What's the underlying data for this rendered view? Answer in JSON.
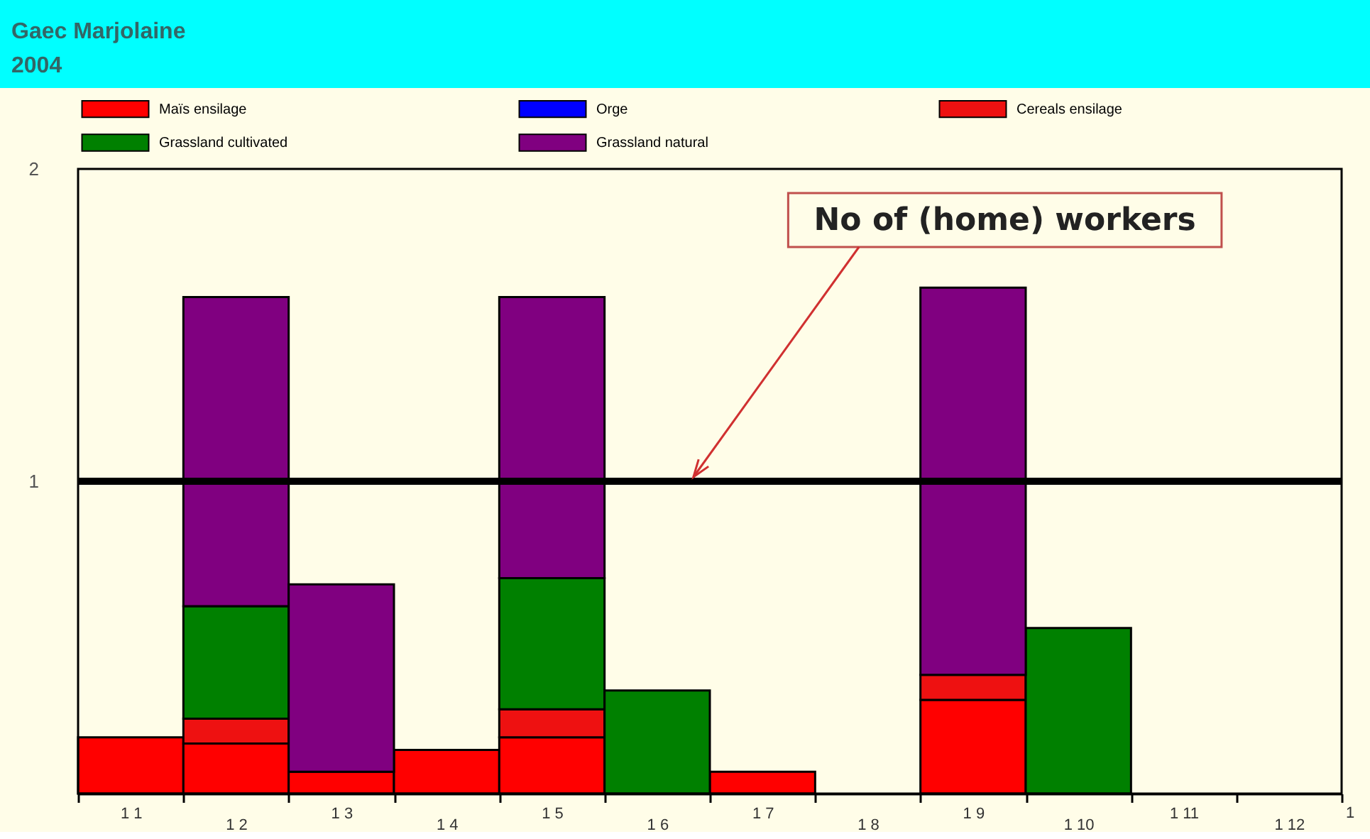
{
  "chart_data": {
    "type": "bar",
    "title": "Gaec Marjolaine",
    "subtitle": "2004",
    "categories": [
      "1 1",
      "1 2",
      "1 3",
      "1 4",
      "1 5",
      "1 6",
      "1 7",
      "1 8",
      "1 9",
      "1 10",
      "1 11",
      "1 12"
    ],
    "stacked": true,
    "series": [
      {
        "name": "Maïs ensilage",
        "color": "#ff0000",
        "values": [
          0.18,
          0.16,
          0.07,
          0.14,
          0.18,
          null,
          0.07,
          null,
          0.3,
          null,
          null,
          null
        ]
      },
      {
        "name": "Orge",
        "color": "#0000ff",
        "values": [
          null,
          null,
          null,
          null,
          null,
          null,
          null,
          null,
          null,
          null,
          null,
          null
        ]
      },
      {
        "name": "Cereals ensilage",
        "color": "#ee1111",
        "values": [
          null,
          0.08,
          null,
          null,
          0.09,
          null,
          null,
          null,
          0.08,
          null,
          null,
          null
        ]
      },
      {
        "name": "Grassland cultivated",
        "color": "#008000",
        "values": [
          null,
          0.36,
          null,
          null,
          0.42,
          0.33,
          null,
          null,
          null,
          0.53,
          null,
          null
        ]
      },
      {
        "name": "Grassland natural",
        "color": "#800080",
        "values": [
          null,
          0.99,
          0.6,
          null,
          0.9,
          null,
          null,
          null,
          1.24,
          null,
          null,
          null
        ]
      }
    ],
    "ylim": [
      0,
      2
    ],
    "yticks": [
      1,
      2
    ],
    "legend": "top",
    "ref_lines": [
      {
        "axis": "y",
        "value": 1,
        "label": "No of (home) workers",
        "color": "#000000"
      }
    ],
    "annotations": [
      "1"
    ]
  }
}
